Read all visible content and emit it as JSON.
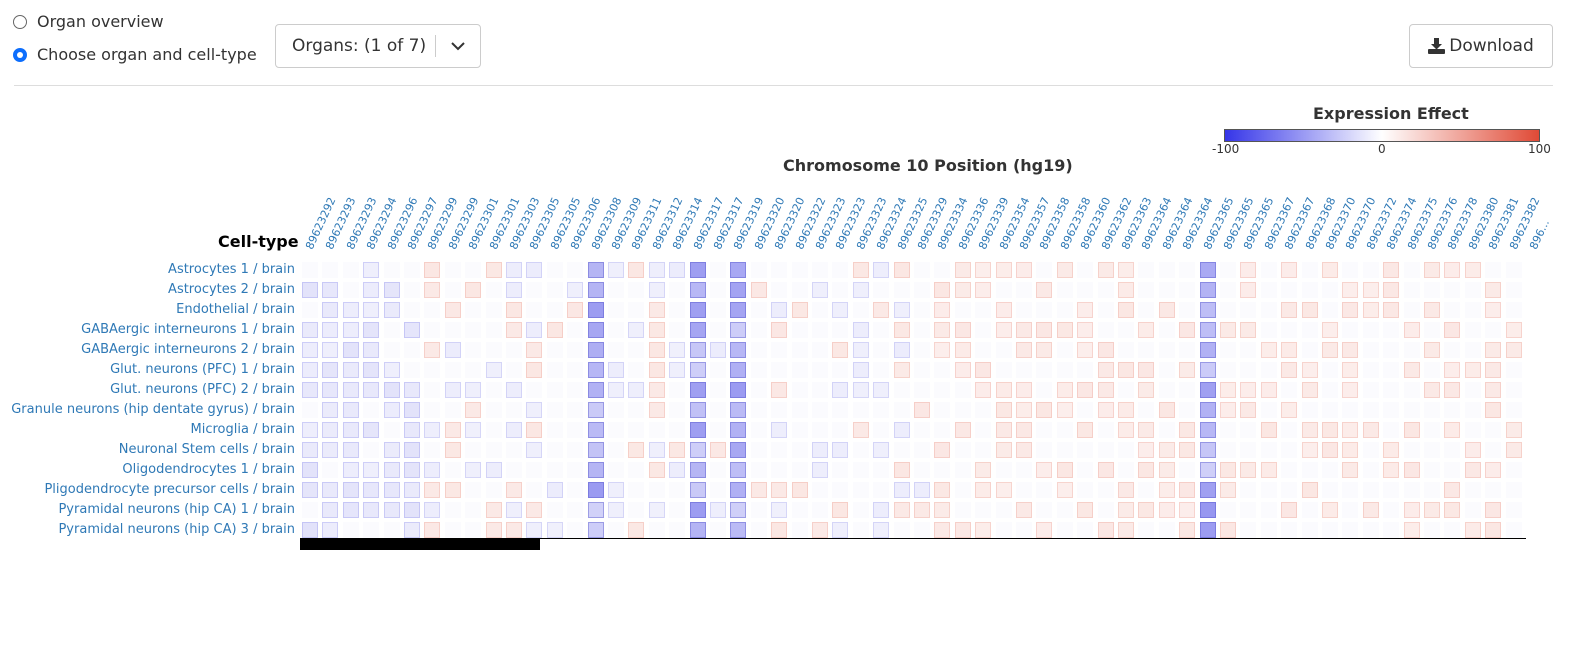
{
  "controls": {
    "radio_overview": "Organ overview",
    "radio_choose": "Choose organ and cell-type",
    "organs_select": "Organs: (1 of 7)",
    "download": "Download"
  },
  "legend": {
    "title": "Expression Effect",
    "min": "-100",
    "mid": "0",
    "max": "100",
    "colors": {
      "neg": "#3535e8",
      "mid": "#ffffff",
      "pos": "#e04a36"
    }
  },
  "heatmap": {
    "x_title": "Chromosome 10 Position (hg19)",
    "y_title": "Cell-type",
    "columns": [
      "89623292",
      "89623293",
      "89623293",
      "89623294",
      "89623296",
      "89623297",
      "89623299",
      "89623299",
      "89623301",
      "89623301",
      "89623303",
      "89623305",
      "89623305",
      "89623306",
      "89623308",
      "89623309",
      "89623311",
      "89623312",
      "89623314",
      "89623317",
      "89623317",
      "89623319",
      "89623320",
      "89623320",
      "89623322",
      "89623323",
      "89623323",
      "89623323",
      "89623324",
      "89623325",
      "89623329",
      "89623334",
      "89623336",
      "89623339",
      "89623354",
      "89623357",
      "89623358",
      "89623358",
      "89623360",
      "89623362",
      "89623363",
      "89623364",
      "89623364",
      "89623364",
      "89623365",
      "89623365",
      "89623365",
      "89623367",
      "89623367",
      "89623368",
      "89623370",
      "89623370",
      "89623372",
      "89623374",
      "89623375",
      "89623376",
      "89623378",
      "89623380",
      "89623381",
      "89623382",
      "896..."
    ],
    "rows": [
      "Astrocytes 1 / brain",
      "Astrocytes 2 / brain",
      "Endothelial / brain",
      "GABAergic interneurons 1 / brain",
      "GABAergic interneurons 2 / brain",
      "Glut. neurons (PFC) 1 / brain",
      "Glut. neurons (PFC) 2 / brain",
      "Granule neurons (hip dentate gyrus) / brain",
      "Microglia / brain",
      "Neuronal Stem cells / brain",
      "Oligodendrocytes 1 / brain",
      "Pligodendrocyte precursor cells / brain",
      "Pyramidal neurons (hip CA) 1 / brain",
      "Pyramidal neurons (hip CA) 3 / brain"
    ]
  }
}
